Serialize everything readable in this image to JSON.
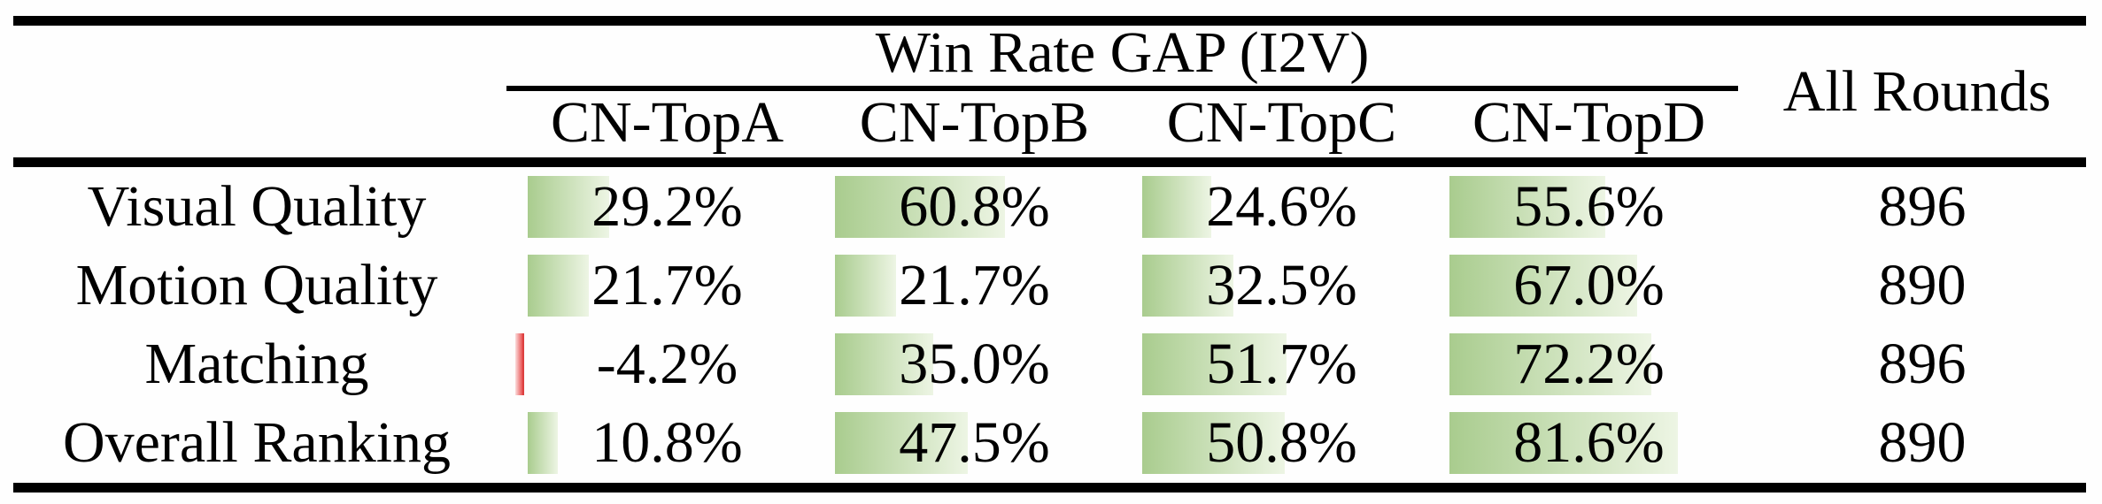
{
  "table": {
    "title": "Win Rate GAP (I2V)",
    "columns": [
      "CN-TopA",
      "CN-TopB",
      "CN-TopC",
      "CN-TopD"
    ],
    "all_rounds_header": "All Rounds",
    "rows": [
      {
        "label": "Visual Quality",
        "cells": [
          {
            "text": "29.2%",
            "value": 29.2
          },
          {
            "text": "60.8%",
            "value": 60.8
          },
          {
            "text": "24.6%",
            "value": 24.6
          },
          {
            "text": "55.6%",
            "value": 55.6
          }
        ],
        "all_rounds": "896"
      },
      {
        "label": "Motion Quality",
        "cells": [
          {
            "text": "21.7%",
            "value": 21.7
          },
          {
            "text": "21.7%",
            "value": 21.7
          },
          {
            "text": "32.5%",
            "value": 32.5
          },
          {
            "text": "67.0%",
            "value": 67.0
          }
        ],
        "all_rounds": "890"
      },
      {
        "label": "Matching",
        "cells": [
          {
            "text": "-4.2%",
            "value": -4.2
          },
          {
            "text": "35.0%",
            "value": 35.0
          },
          {
            "text": "51.7%",
            "value": 51.7
          },
          {
            "text": "72.2%",
            "value": 72.2
          }
        ],
        "all_rounds": "896"
      },
      {
        "label": "Overall Ranking",
        "cells": [
          {
            "text": "10.8%",
            "value": 10.8
          },
          {
            "text": "47.5%",
            "value": 47.5
          },
          {
            "text": "50.8%",
            "value": 50.8
          },
          {
            "text": "81.6%",
            "value": 81.6
          }
        ],
        "all_rounds": "890"
      }
    ]
  },
  "colors": {
    "rule": "#000000",
    "text": "#000000",
    "bar_positive_start": "#a9cc8e",
    "bar_positive_end": "#edf5e4",
    "bar_negative_start": "#fbdddd",
    "bar_negative_end": "#e85252"
  },
  "chart_data": {
    "type": "table",
    "title": "Win Rate GAP (I2V)",
    "rows": [
      "Visual Quality",
      "Motion Quality",
      "Matching",
      "Overall Ranking"
    ],
    "columns": [
      "CN-TopA",
      "CN-TopB",
      "CN-TopC",
      "CN-TopD",
      "All Rounds"
    ],
    "series": [
      {
        "name": "CN-TopA",
        "values": [
          29.2,
          21.7,
          -4.2,
          10.8
        ]
      },
      {
        "name": "CN-TopB",
        "values": [
          60.8,
          21.7,
          35.0,
          47.5
        ]
      },
      {
        "name": "CN-TopC",
        "values": [
          24.6,
          32.5,
          51.7,
          50.8
        ]
      },
      {
        "name": "CN-TopD",
        "values": [
          55.6,
          67.0,
          72.2,
          81.6
        ]
      }
    ],
    "all_rounds": [
      896,
      890,
      896,
      890
    ],
    "unit": "%",
    "databars": "green gradient bar proportional to value, red thin bar for negative values"
  }
}
